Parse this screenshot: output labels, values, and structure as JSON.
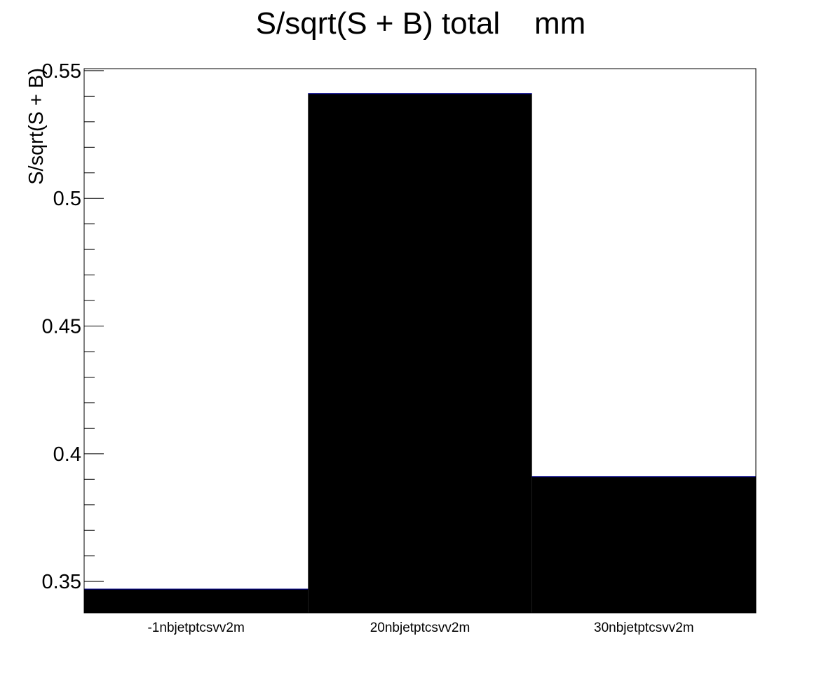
{
  "chart_data": {
    "type": "bar",
    "title": "S/sqrt(S + B) total    mm",
    "xlabel": "",
    "ylabel": "S/sqrt(S + B)",
    "categories": [
      "-1nbjetptcsvv2m",
      "20nbjetptcsvv2m",
      "30nbjetptcsvv2m"
    ],
    "values": [
      0.347,
      0.541,
      0.391
    ],
    "ylim": [
      0.3377,
      0.5508
    ],
    "yticks": [
      0.35,
      0.4,
      0.45,
      0.5,
      0.55
    ],
    "ytick_labels": [
      "0.35",
      "0.4",
      "0.45",
      "0.5",
      "0.55"
    ],
    "grid": false,
    "bar_fill": "#000000",
    "bar_edge": "#000080",
    "frame_color": "#000000"
  }
}
